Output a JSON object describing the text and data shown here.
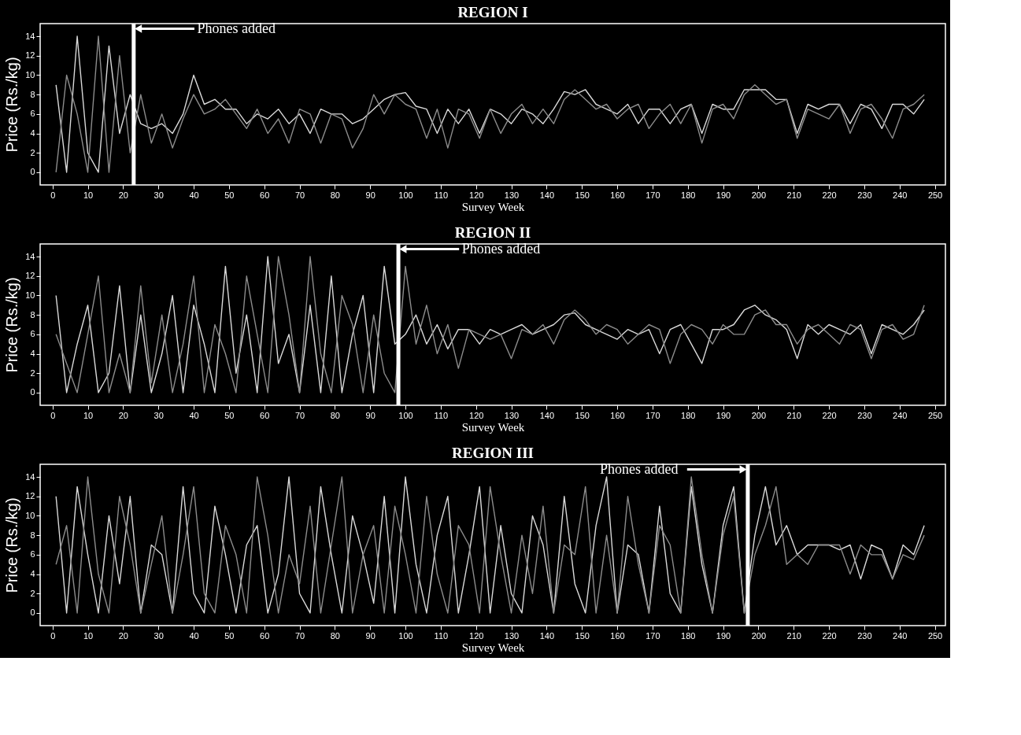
{
  "chart_data": [
    {
      "type": "line",
      "title": "REGION I",
      "xlabel": "Survey Week",
      "ylabel": "Price (Rs./kg)",
      "legend": false,
      "grid": false,
      "x": [
        1,
        4,
        7,
        10,
        13,
        16,
        19,
        22,
        25,
        28,
        31,
        34,
        37,
        40,
        43,
        46,
        49,
        52,
        55,
        58,
        61,
        64,
        67,
        70,
        73,
        76,
        79,
        82,
        85,
        88,
        91,
        94,
        97,
        100,
        103,
        106,
        109,
        112,
        115,
        118,
        121,
        124,
        127,
        130,
        133,
        136,
        139,
        142,
        145,
        148,
        151,
        154,
        157,
        160,
        163,
        166,
        169,
        172,
        175,
        178,
        181,
        184,
        187,
        190,
        193,
        196,
        199,
        202,
        205,
        208,
        211,
        214,
        217,
        220,
        223,
        226,
        229,
        232,
        235,
        238,
        241,
        244,
        247
      ],
      "series": [
        {
          "color": "#d9d9d9",
          "values": [
            9,
            0,
            14,
            2,
            0,
            13,
            4,
            8,
            5,
            4.5,
            5,
            4,
            6,
            10,
            7,
            7.5,
            6.5,
            6.5,
            5,
            6,
            5.5,
            6.5,
            5,
            6,
            4,
            6.5,
            6,
            6,
            5,
            5.5,
            6.5,
            7.5,
            8,
            8.2,
            6.8,
            6.5,
            4,
            6.5,
            5,
            6.5,
            4,
            6.5,
            6,
            5,
            6.5,
            6,
            5,
            6.5,
            8.3,
            8,
            8.5,
            7,
            6.5,
            6,
            7,
            5,
            6.5,
            6.5,
            5,
            6.5,
            7,
            4,
            7,
            6.5,
            6.5,
            8.5,
            8.5,
            8.5,
            7.5,
            7.5,
            4,
            7,
            6.5,
            7,
            7,
            5,
            7,
            6.5,
            4.5,
            7,
            7,
            6,
            7.5
          ]
        },
        {
          "color": "#8c8c8c",
          "values": [
            0,
            10,
            6,
            0,
            14,
            0,
            12,
            2,
            8,
            3,
            6,
            2.5,
            5.5,
            8,
            6,
            6.5,
            7.5,
            6,
            4.5,
            6.5,
            4,
            5.5,
            3,
            6.5,
            6,
            3,
            6,
            5.5,
            2.5,
            4.5,
            8,
            6,
            8,
            7,
            6.5,
            3.5,
            6.5,
            2.5,
            6.5,
            6,
            3.5,
            6.5,
            4,
            6,
            7,
            5,
            6.5,
            5,
            7.5,
            8.5,
            7.5,
            6.5,
            7,
            5.5,
            6.5,
            7,
            4.5,
            6,
            7,
            5,
            7,
            3,
            6.5,
            7,
            5.5,
            8,
            9,
            8,
            7,
            7.5,
            3.5,
            6.5,
            6,
            5.5,
            7,
            4,
            6.5,
            7,
            5.5,
            3.5,
            6.5,
            7,
            8
          ]
        }
      ],
      "xlim": [
        -3.5,
        253
      ],
      "ylim": [
        -1.3,
        15.3
      ],
      "xticks": [
        0,
        10,
        20,
        30,
        40,
        50,
        60,
        70,
        80,
        90,
        100,
        110,
        120,
        130,
        140,
        150,
        160,
        170,
        180,
        190,
        200,
        210,
        220,
        230,
        240,
        250
      ],
      "yticks": [
        0,
        2,
        4,
        6,
        8,
        10,
        12,
        14
      ],
      "ref_lines": [
        {
          "axis": "x",
          "value": 23,
          "label": "Phones added",
          "color": "#ffffff"
        }
      ]
    },
    {
      "type": "line",
      "title": "REGION II",
      "xlabel": "Survey Week",
      "ylabel": "Price (Rs./kg)",
      "legend": false,
      "grid": false,
      "x": [
        1,
        4,
        7,
        10,
        13,
        16,
        19,
        22,
        25,
        28,
        31,
        34,
        37,
        40,
        43,
        46,
        49,
        52,
        55,
        58,
        61,
        64,
        67,
        70,
        73,
        76,
        79,
        82,
        85,
        88,
        91,
        94,
        97,
        100,
        103,
        106,
        109,
        112,
        115,
        118,
        121,
        124,
        127,
        130,
        133,
        136,
        139,
        142,
        145,
        148,
        151,
        154,
        157,
        160,
        163,
        166,
        169,
        172,
        175,
        178,
        181,
        184,
        187,
        190,
        193,
        196,
        199,
        202,
        205,
        208,
        211,
        214,
        217,
        220,
        223,
        226,
        229,
        232,
        235,
        238,
        241,
        244,
        247
      ],
      "series": [
        {
          "color": "#d9d9d9",
          "values": [
            10,
            0,
            5,
            9,
            0,
            2,
            11,
            0,
            8,
            0,
            4,
            10,
            0,
            9,
            5,
            0,
            13,
            2,
            8,
            0,
            14,
            3,
            6,
            0,
            9,
            0,
            12,
            0,
            6,
            10,
            0,
            13,
            5,
            6,
            8,
            5,
            7,
            4.5,
            6.5,
            6.5,
            5,
            6.5,
            6,
            6.5,
            7,
            6,
            6.5,
            7,
            8,
            8.2,
            7,
            6.5,
            6,
            5.5,
            6.5,
            6,
            6.5,
            4,
            6.5,
            7,
            5,
            3,
            6.5,
            6.5,
            7,
            8.5,
            9,
            8,
            7.5,
            6.5,
            3.5,
            7,
            6,
            7,
            6.5,
            6,
            7,
            4,
            7,
            6.5,
            6,
            7,
            8.5
          ]
        },
        {
          "color": "#8c8c8c",
          "values": [
            6,
            3,
            0,
            6,
            12,
            0,
            4,
            0,
            11,
            1,
            8,
            0,
            5,
            12,
            0,
            7,
            4,
            0,
            12,
            6,
            0,
            14,
            8,
            0,
            14,
            4,
            0,
            10,
            7,
            0,
            8,
            2,
            0,
            13,
            5,
            9,
            4,
            7,
            2.5,
            6.5,
            6,
            5.5,
            6,
            3.5,
            6.5,
            6,
            7,
            5,
            7.5,
            8.5,
            7.5,
            6,
            7,
            6.5,
            5,
            6,
            7,
            6.5,
            3,
            6,
            7,
            6.5,
            5,
            7,
            6,
            6,
            8,
            8.5,
            7,
            7,
            5,
            6.5,
            7,
            6,
            5,
            7,
            6.5,
            3.5,
            6.5,
            7,
            5.5,
            6,
            9
          ]
        }
      ],
      "xlim": [
        -3.5,
        253
      ],
      "ylim": [
        -1.3,
        15.3
      ],
      "xticks": [
        0,
        10,
        20,
        30,
        40,
        50,
        60,
        70,
        80,
        90,
        100,
        110,
        120,
        130,
        140,
        150,
        160,
        170,
        180,
        190,
        200,
        210,
        220,
        230,
        240,
        250
      ],
      "yticks": [
        0,
        2,
        4,
        6,
        8,
        10,
        12,
        14
      ],
      "ref_lines": [
        {
          "axis": "x",
          "value": 98,
          "label": "Phones added",
          "color": "#ffffff"
        }
      ]
    },
    {
      "type": "line",
      "title": "REGION III",
      "xlabel": "Survey Week",
      "ylabel": "Price (Rs./kg)",
      "legend": false,
      "grid": false,
      "x": [
        1,
        4,
        7,
        10,
        13,
        16,
        19,
        22,
        25,
        28,
        31,
        34,
        37,
        40,
        43,
        46,
        49,
        52,
        55,
        58,
        61,
        64,
        67,
        70,
        73,
        76,
        79,
        82,
        85,
        88,
        91,
        94,
        97,
        100,
        103,
        106,
        109,
        112,
        115,
        118,
        121,
        124,
        127,
        130,
        133,
        136,
        139,
        142,
        145,
        148,
        151,
        154,
        157,
        160,
        163,
        166,
        169,
        172,
        175,
        178,
        181,
        184,
        187,
        190,
        193,
        196,
        199,
        202,
        205,
        208,
        211,
        214,
        217,
        220,
        223,
        226,
        229,
        232,
        235,
        238,
        241,
        244,
        247
      ],
      "series": [
        {
          "color": "#d9d9d9",
          "values": [
            12,
            0,
            13,
            6,
            0,
            10,
            3,
            12,
            0,
            7,
            6,
            0,
            13,
            2,
            0,
            11,
            6,
            0,
            7,
            9,
            0,
            4,
            14,
            2,
            0,
            13,
            6,
            0,
            10,
            6,
            1,
            12,
            0,
            14,
            5,
            0,
            8,
            12,
            0,
            6,
            13,
            0,
            9,
            2,
            0,
            10,
            7,
            0,
            12,
            3,
            0,
            9,
            14,
            0,
            7,
            6,
            0,
            11,
            2,
            0,
            13,
            5,
            0,
            9,
            13,
            0,
            8,
            13,
            7,
            9,
            6,
            7,
            7,
            7,
            6.5,
            7,
            3.5,
            7,
            6.5,
            3.5,
            7,
            6,
            9
          ]
        },
        {
          "color": "#8c8c8c",
          "values": [
            5,
            9,
            0,
            14,
            4,
            0,
            12,
            7,
            0,
            5,
            10,
            0,
            6,
            13,
            2,
            0,
            9,
            6,
            0,
            14,
            8,
            0,
            6,
            3,
            11,
            0,
            7,
            14,
            0,
            6,
            9,
            0,
            11,
            6,
            0,
            12,
            4,
            0,
            9,
            7,
            0,
            13,
            6,
            0,
            8,
            2,
            11,
            0,
            7,
            6,
            13,
            0,
            8,
            0,
            12,
            5,
            0,
            9,
            7,
            0,
            14,
            6,
            0,
            8,
            12,
            0,
            6,
            9,
            13,
            5,
            6,
            5,
            7,
            7,
            7,
            4,
            7,
            6,
            6,
            3.5,
            6,
            5.5,
            8
          ]
        }
      ],
      "xlim": [
        -3.5,
        253
      ],
      "ylim": [
        -1.3,
        15.3
      ],
      "xticks": [
        0,
        10,
        20,
        30,
        40,
        50,
        60,
        70,
        80,
        90,
        100,
        110,
        120,
        130,
        140,
        150,
        160,
        170,
        180,
        190,
        200,
        210,
        220,
        230,
        240,
        250
      ],
      "yticks": [
        0,
        2,
        4,
        6,
        8,
        10,
        12,
        14
      ],
      "ref_lines": [
        {
          "axis": "x",
          "value": 197,
          "label": "Phones added",
          "color": "#ffffff"
        }
      ]
    }
  ]
}
